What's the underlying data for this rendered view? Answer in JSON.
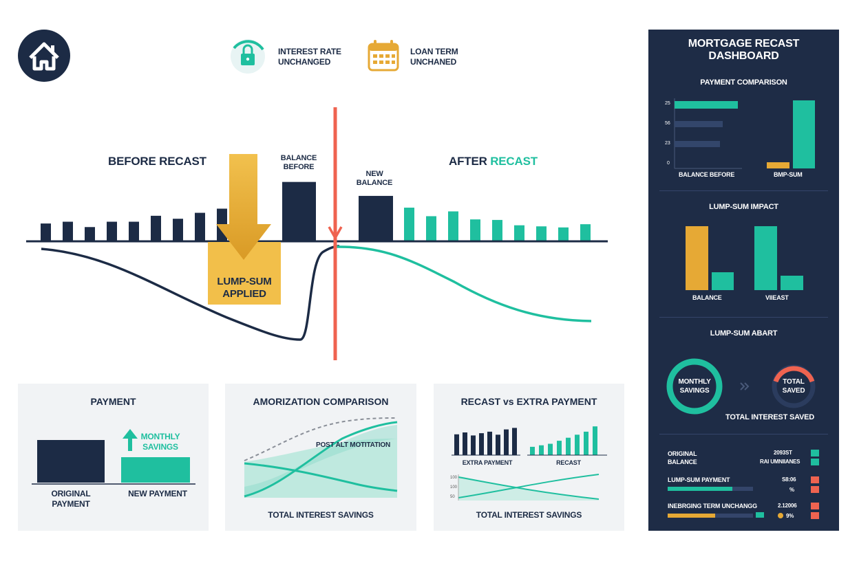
{
  "header": {
    "interest_rate": "INTEREST RATE\nUNCHANGED",
    "loan_term": "LOAN TERM\nUNCHANED"
  },
  "main_chart": {
    "before_label": "BEFORE RECAST",
    "after_label_1": "AFTER",
    "after_label_2": "RECAST",
    "balance_before": "BALANCE\nBEFORE",
    "new_balance": "NEW\nBALANCE",
    "lump_sum": "LUMP-SUM\nAPPLIED"
  },
  "colors": {
    "navy": "#1c2b45",
    "teal": "#1fbf9f",
    "gold": "#e6a935",
    "red": "#ef6350"
  },
  "chart_data": [
    {
      "type": "bar",
      "name_hint": "main-recast",
      "before_values": [
        30,
        33,
        24,
        33,
        33,
        43,
        38,
        48,
        55,
        100
      ],
      "after_values": [
        85,
        63,
        47,
        56,
        41,
        40,
        30,
        28,
        26,
        32
      ],
      "ylim": [
        0,
        110
      ]
    },
    {
      "type": "bar",
      "title": "PAYMENT",
      "categories": [
        "ORIGINAL\nPAYMENT",
        "NEW PAYMENT"
      ],
      "values": [
        100,
        59
      ],
      "annotation": "MONTHLY\nSAVINGS"
    },
    {
      "type": "area",
      "title": "AMORIZATION COMPARISON",
      "annotation": "POST ALT MOTITATION",
      "footer": "TOTAL INTEREST SAVINGS"
    },
    {
      "type": "bar",
      "title": "RECAST vs EXTRA PAYMENT",
      "categories": [
        "EXTRA PAYMENT",
        "RECAST"
      ],
      "extra_payment": [
        55,
        60,
        52,
        58,
        62,
        54,
        68,
        72
      ],
      "recast": [
        22,
        26,
        30,
        38,
        46,
        54,
        62,
        76
      ],
      "axis_ticks": [
        "100",
        "100",
        "50"
      ],
      "footer": "TOTAL INTEREST SAVINGS"
    }
  ],
  "dashboard": {
    "title": "MORTGAGE RECAST\nDASHBOARD",
    "payment_comparison": {
      "title": "PAYMENT COMPARISON",
      "ticks": [
        "25",
        "56",
        "23",
        "0"
      ],
      "labels": [
        "BALANCE BEFORE",
        "BMP-SUM"
      ]
    },
    "lump_sum_impact": {
      "title": "LUMP-SUM IMPACT",
      "labels": [
        "BALANCE",
        "VIIEAST"
      ]
    },
    "lump_sum_apart": {
      "title": "LUMP-SUM ABART",
      "monthly_savings": "MONTHLY\nSAVINGS",
      "total_saved": "TOTAL\nSAVED",
      "total_interest": "TOTAL INTEREST SAVED"
    },
    "summary": {
      "row1_label": "ORIGINAL\nBALANCE",
      "row1_v1": "2093ST",
      "row1_v2": "RAI UMNIIANES",
      "row2_label": "LUMP-SUM PAYMENT",
      "row2_v1": "S8:06",
      "row2_v2": "%",
      "row3_label": "INEBRGING TERM UNCHANGG",
      "row3_v1": "2.12006",
      "row3_v2": "9%"
    }
  }
}
